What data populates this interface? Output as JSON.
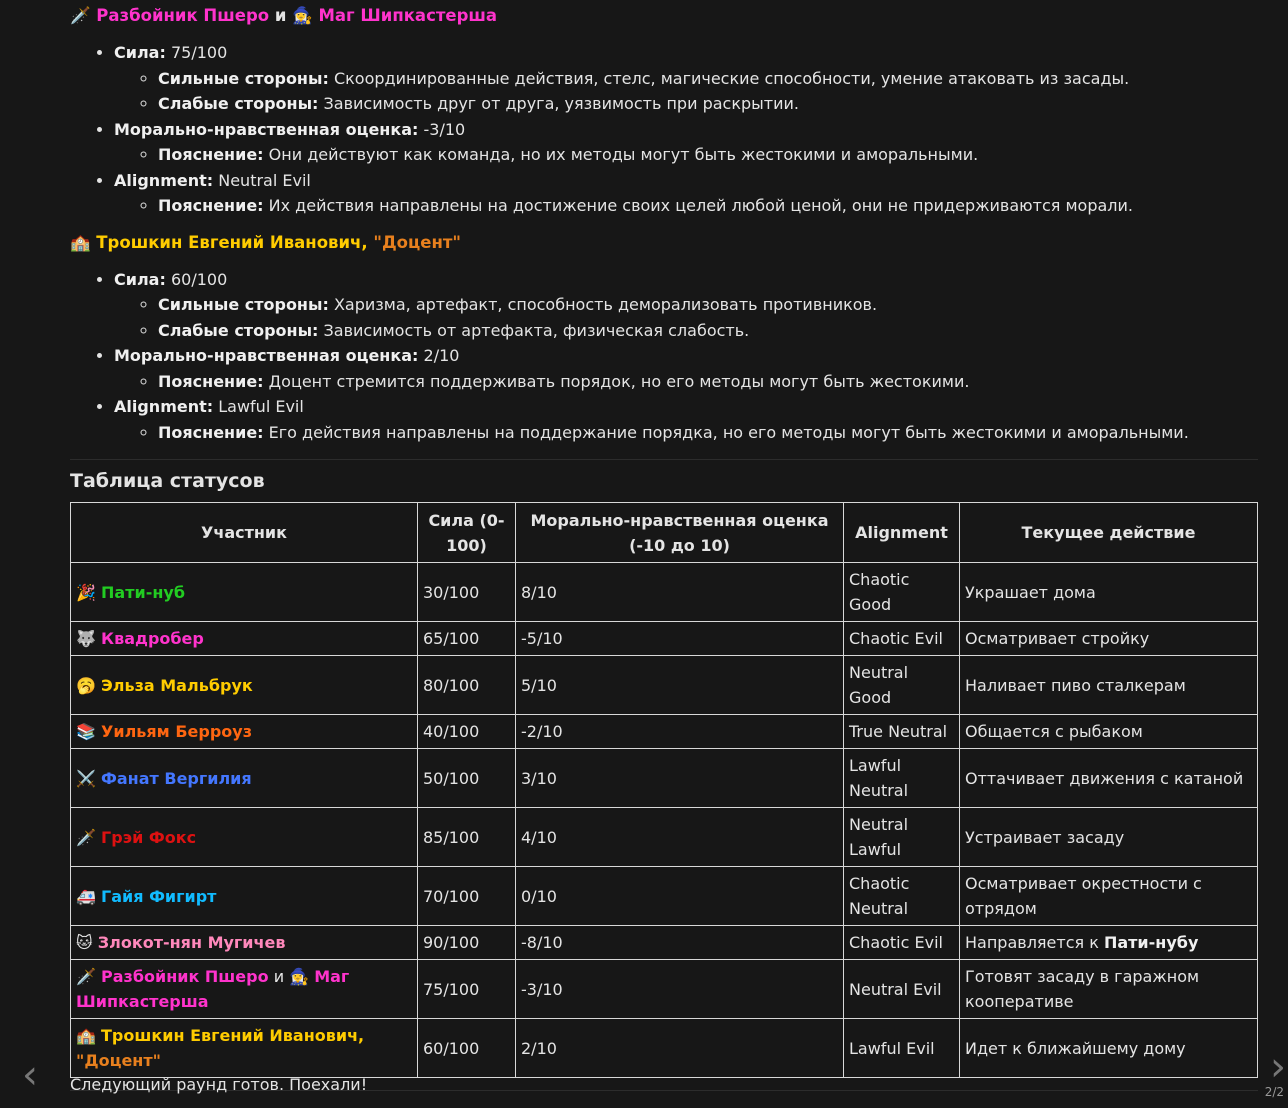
{
  "colors": {
    "background": "#171717",
    "text": "#e4e4e4",
    "pink": "#ff33cc",
    "yellow": "#ffcc00",
    "orange": "#e8801e",
    "green": "#22cc22",
    "blue": "#4477ff",
    "red": "#dd1111",
    "cyan": "#11bbff",
    "lightpink": "#ff88bb",
    "burnt": "#ff6611"
  },
  "sections": [
    {
      "icon": "dagger-icon",
      "icon_glyph": "🗡️",
      "name1": "Разбойник Пшеро",
      "conj": "и",
      "icon2": "mage-icon",
      "icon2_glyph": "🧙‍♀️",
      "name2": "Маг Шипкастерша",
      "strength_label": "Сила:",
      "strength": " 75/100",
      "strong_label": "Сильные стороны:",
      "strong": " Скоординированные действия, стелс, магические способности, умение атаковать из засады.",
      "weak_label": "Слабые стороны:",
      "weak": " Зависимость друг от друга, уязвимость при раскрытии.",
      "moral_label": "Морально-нравственная оценка:",
      "moral": " -3/10",
      "moral_expl_label": "Пояснение:",
      "moral_expl": " Они действуют как команда, но их методы могут быть жестокими и аморальными.",
      "align_label": "Alignment:",
      "align": " Neutral Evil",
      "align_expl_label": "Пояснение:",
      "align_expl": " Их действия направлены на достижение своих целей любой ценой, они не придерживаются морали."
    },
    {
      "icon": "school-icon",
      "icon_glyph": "🏫",
      "name1": "Трошкин Евгений Иванович,",
      "name2": "\"Доцент\"",
      "strength_label": "Сила:",
      "strength": " 60/100",
      "strong_label": "Сильные стороны:",
      "strong": " Харизма, артефакт, способность деморализовать противников.",
      "weak_label": "Слабые стороны:",
      "weak": " Зависимость от артефакта, физическая слабость.",
      "moral_label": "Морально-нравственная оценка:",
      "moral": " 2/10",
      "moral_expl_label": "Пояснение:",
      "moral_expl": " Доцент стремится поддерживать порядок, но его методы могут быть жестокими.",
      "align_label": "Alignment:",
      "align": " Lawful Evil",
      "align_expl_label": "Пояснение:",
      "align_expl": " Его действия направлены на поддержание порядка, но его методы могут быть жестокими и аморальными."
    }
  ],
  "table": {
    "title": "Таблица статусов",
    "headers": [
      "Участник",
      "Сила (0-100)",
      "Морально-нравственная оценка (-10 до 10)",
      "Alignment",
      "Текущее действие"
    ],
    "rows": [
      {
        "icon": "party-popper-icon",
        "glyph": "🎉",
        "name": "Пати-нуб",
        "color": "#22cc22",
        "power": "30/100",
        "moral": "8/10",
        "align": "Chaotic Good",
        "action": "Украшает дома"
      },
      {
        "icon": "wolf-icon",
        "glyph": "🐺",
        "name": "Квадробер",
        "color": "#ff33cc",
        "power": "65/100",
        "moral": "-5/10",
        "align": "Chaotic Evil",
        "action": "Осматривает стройку"
      },
      {
        "icon": "sleepy-face-icon",
        "glyph": "🥱",
        "name": "Эльза Мальбрук",
        "color": "#ffcc00",
        "power": "80/100",
        "moral": "5/10",
        "align": "Neutral Good",
        "action": "Наливает пиво сталкерам"
      },
      {
        "icon": "books-icon",
        "glyph": "📚",
        "name": "Уильям Берроуз",
        "color": "#ff6611",
        "power": "40/100",
        "moral": "-2/10",
        "align": "True Neutral",
        "action": "Общается с рыбаком"
      },
      {
        "icon": "crossed-swords-icon",
        "glyph": "⚔️",
        "name": "Фанат Вергилия",
        "color": "#4477ff",
        "power": "50/100",
        "moral": "3/10",
        "align": "Lawful Neutral",
        "action": "Оттачивает движения с катаной"
      },
      {
        "icon": "dagger-icon",
        "glyph": "🗡️",
        "name": "Грэй Фокс",
        "color": "#dd1111",
        "power": "85/100",
        "moral": "4/10",
        "align": "Neutral Lawful",
        "action": "Устраивает засаду"
      },
      {
        "icon": "ambulance-icon",
        "glyph": "🚑",
        "name": "Гайя Фигирт",
        "color": "#11bbff",
        "power": "70/100",
        "moral": "0/10",
        "align": "Chaotic Neutral",
        "action": "Осматривает окрестности с отрядом"
      },
      {
        "icon": "cat-face-icon",
        "glyph": "🐱",
        "name": "Злокот-нян Мугичев",
        "color": "#ff88bb",
        "power": "90/100",
        "moral": "-8/10",
        "align": "Chaotic Evil",
        "action": "Направляется к ",
        "action_bold": "Пати-нубу"
      },
      {
        "icon": "dagger-icon",
        "glyph": "🗡️",
        "name": "Разбойник Пшеро",
        "conj": "и",
        "glyph2": "🧙‍♀️",
        "name2": "Маг Шипкастерша",
        "color": "#ff33cc",
        "power": "75/100",
        "moral": "-3/10",
        "align": "Neutral Evil",
        "action": "Готовят засаду в гаражном кооперативе"
      },
      {
        "icon": "school-icon",
        "glyph": "🏫",
        "name": "Трошкин Евгений Иванович,",
        "name2": "\"Доцент\"",
        "color": "#ffcc00",
        "power": "60/100",
        "moral": "2/10",
        "align": "Lawful Evil",
        "action": "Идет к ближайшему дому"
      }
    ]
  },
  "footer": "Следующий раунд готов. Поехали!",
  "pager": {
    "prev": "‹",
    "next": "›",
    "page": "2/2"
  }
}
